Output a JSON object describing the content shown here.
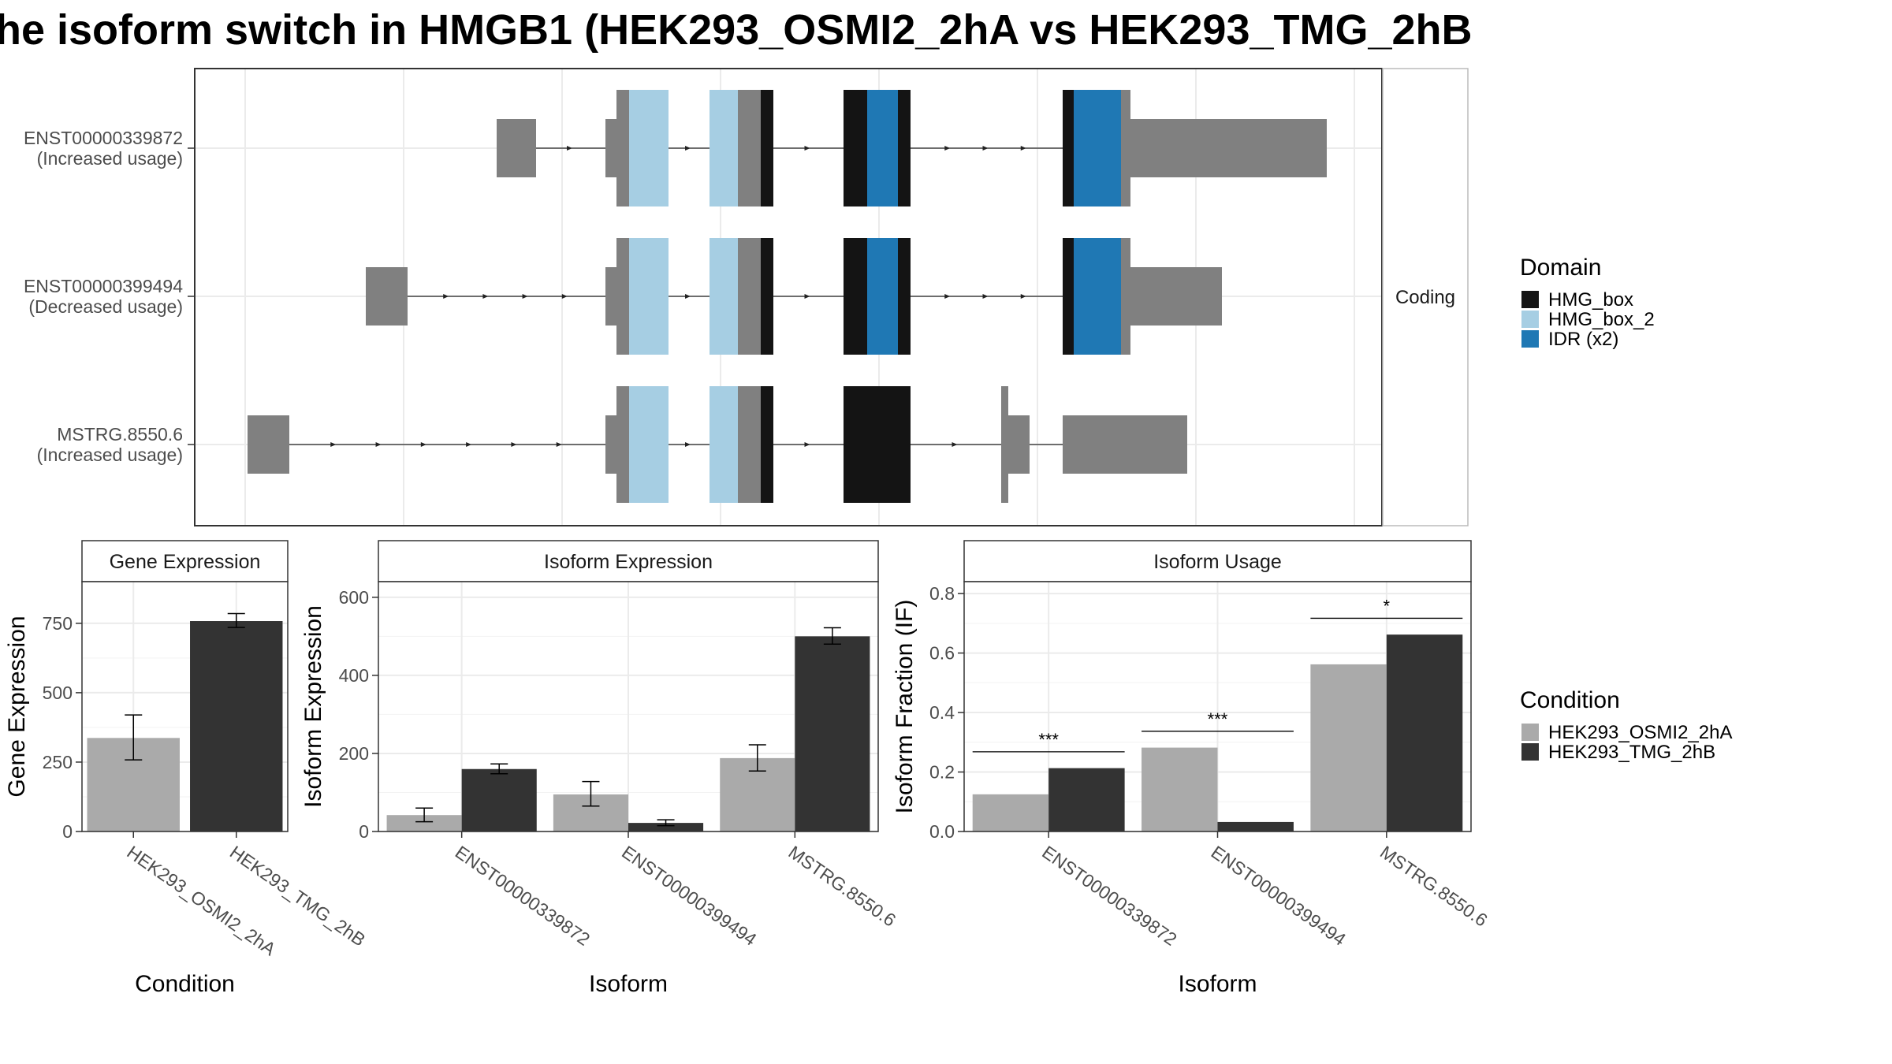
{
  "title": "he isoform switch in HMGB1 (HEK293_OSMI2_2hA vs HEK293_TMG_2hB",
  "colors": {
    "utr": "#808080",
    "hmg_box": "#141414",
    "hmg_box_2": "#a6cee3",
    "idr": "#1f78b4",
    "cond_a": "#aaaaaa",
    "cond_b": "#333333"
  },
  "structure": {
    "facet_label": "Coding",
    "transcripts": [
      {
        "id": "ENST00000339872",
        "usage": "(Increased usage)"
      },
      {
        "id": "ENST00000399494",
        "usage": "(Decreased usage)"
      },
      {
        "id": "MSTRG.8550.6",
        "usage": "(Increased usage)"
      }
    ]
  },
  "domain_legend": {
    "title": "Domain",
    "items": [
      {
        "label": "HMG_box",
        "color": "#141414"
      },
      {
        "label": "HMG_box_2",
        "color": "#a6cee3"
      },
      {
        "label": "IDR (x2)",
        "color": "#1f78b4"
      }
    ]
  },
  "condition_legend": {
    "title": "Condition",
    "items": [
      {
        "label": "HEK293_OSMI2_2hA",
        "color": "#aaaaaa"
      },
      {
        "label": "HEK293_TMG_2hB",
        "color": "#333333"
      }
    ]
  },
  "chart_data": [
    {
      "type": "bar",
      "title": "Gene Expression",
      "xlabel": "Condition",
      "ylabel": "Gene Expression",
      "categories": [
        "HEK293_OSMI2_2hA",
        "HEK293_TMG_2hB"
      ],
      "values": [
        337,
        758
      ],
      "errors": [
        [
          258,
          420
        ],
        [
          735,
          785
        ]
      ],
      "colors": [
        "#aaaaaa",
        "#333333"
      ],
      "ylim": [
        0,
        900
      ],
      "yticks": [
        0,
        250,
        500,
        750
      ]
    },
    {
      "type": "bar",
      "title": "Isoform Expression",
      "xlabel": "Isoform",
      "ylabel": "Isoform Expression",
      "categories": [
        "ENST00000339872",
        "ENST00000399494",
        "MSTRG.8550.6"
      ],
      "series": [
        {
          "name": "HEK293_OSMI2_2hA",
          "values": [
            42,
            95,
            188
          ],
          "errors": [
            [
              25,
              60
            ],
            [
              65,
              128
            ],
            [
              155,
              222
            ]
          ]
        },
        {
          "name": "HEK293_TMG_2hB",
          "values": [
            160,
            22,
            500
          ],
          "errors": [
            [
              148,
              173
            ],
            [
              15,
              30
            ],
            [
              480,
              522
            ]
          ]
        }
      ],
      "ylim": [
        0,
        640
      ],
      "yticks": [
        0,
        200,
        400,
        600
      ]
    },
    {
      "type": "bar",
      "title": "Isoform Usage",
      "xlabel": "Isoform",
      "ylabel": "Isoform Fraction (IF)",
      "categories": [
        "ENST00000339872",
        "ENST00000399494",
        "MSTRG.8550.6"
      ],
      "series": [
        {
          "name": "HEK293_OSMI2_2hA",
          "values": [
            0.125,
            0.282,
            0.562
          ]
        },
        {
          "name": "HEK293_TMG_2hB",
          "values": [
            0.213,
            0.032,
            0.662
          ]
        }
      ],
      "significance": [
        "***",
        "***",
        "*"
      ],
      "ylim": [
        0,
        0.84
      ],
      "yticks": [
        "0.0",
        "0.2",
        "0.4",
        "0.6",
        "0.8"
      ]
    }
  ]
}
